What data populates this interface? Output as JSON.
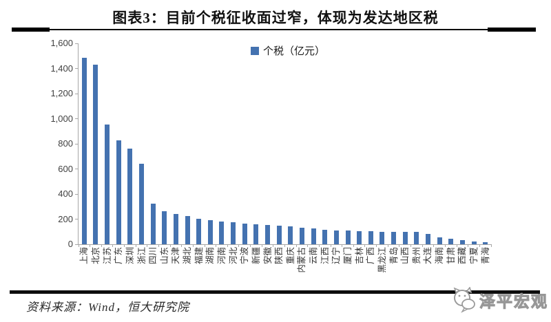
{
  "header": {
    "title": "图表3：目前个税征收面过窄，体现为发达地区税"
  },
  "chart_data": {
    "type": "bar",
    "title": "图表3：目前个税征收面过窄，体现为发达地区税",
    "legend": [
      "个税（亿元）"
    ],
    "legend_position": "top-center",
    "grid": false,
    "ylim": [
      0,
      1600
    ],
    "ytick_step": 200,
    "yticks": [
      "0",
      "200",
      "400",
      "600",
      "800",
      "1,000",
      "1,200",
      "1,400",
      "1,600"
    ],
    "bar_color": "#4472B0",
    "axis_color": "#a6a6a6",
    "categories": [
      "上海",
      "北京",
      "江苏",
      "广东",
      "深圳",
      "浙江",
      "四川",
      "山东",
      "天津",
      "湖北",
      "福建",
      "湖南",
      "河南",
      "河北",
      "宁波",
      "新疆",
      "安徽",
      "陕西",
      "重庆",
      "内蒙古",
      "云南",
      "江西",
      "辽宁",
      "厦门",
      "吉林",
      "广西",
      "黑龙江",
      "青岛",
      "山西",
      "贵州",
      "大连",
      "海南",
      "甘肃",
      "西藏",
      "宁夏",
      "青海"
    ],
    "values": [
      1485,
      1430,
      955,
      830,
      760,
      640,
      325,
      265,
      240,
      225,
      205,
      192,
      182,
      175,
      165,
      158,
      153,
      148,
      140,
      131,
      126,
      116,
      112,
      110,
      106,
      103,
      101,
      99,
      98,
      96,
      80,
      55,
      45,
      35,
      24,
      14
    ],
    "xlabel": "",
    "ylabel": ""
  },
  "footer": {
    "source": "资料来源：Wind，恒大研究院",
    "watermark": "泽平宏观",
    "watermark_icon": "mascot-face-icon"
  }
}
